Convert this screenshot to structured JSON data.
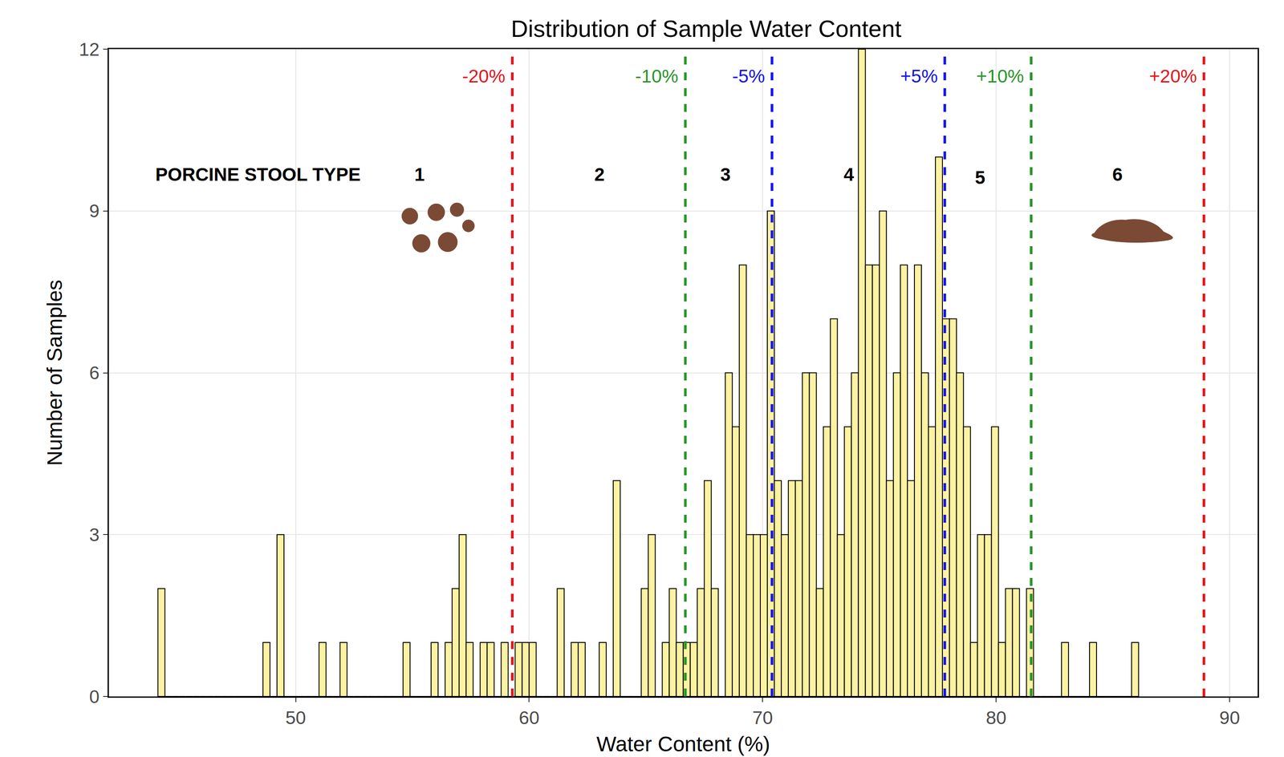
{
  "chart_data": {
    "type": "histogram",
    "title": "Distribution of Sample Water Content",
    "x_label": "Water Content (%)",
    "y_label": "Number of Samples",
    "color": "#fdf2a2",
    "bins": [
      44.1,
      44.4,
      44.7,
      45.0,
      45.3,
      45.6,
      45.9,
      46.2,
      46.5,
      46.8,
      47.1,
      47.4,
      47.7,
      48.0,
      48.3,
      48.6,
      48.9,
      49.2,
      49.5,
      49.8,
      50.1,
      50.4,
      50.7,
      51.0,
      51.3,
      51.6,
      51.9,
      52.2,
      52.5,
      52.8,
      53.1,
      53.4,
      53.7,
      54.0,
      54.3,
      54.6,
      54.9,
      55.2,
      55.5,
      55.8,
      56.1,
      56.4,
      56.7,
      57.0,
      57.3,
      57.6,
      57.9,
      58.2,
      58.5,
      58.8,
      59.1,
      59.4,
      59.7,
      60.0,
      60.3,
      60.6,
      60.9,
      61.2,
      61.5,
      61.8,
      62.1,
      62.4,
      62.7,
      63.0,
      63.3,
      63.6,
      63.9,
      64.2,
      64.5,
      64.8,
      65.1,
      65.4,
      65.7,
      66.0,
      66.3,
      66.6,
      66.9,
      67.2,
      67.5,
      67.8,
      68.1,
      68.4,
      68.7,
      69.0,
      69.3,
      69.6,
      69.9,
      70.2,
      70.5,
      70.8,
      71.1,
      71.4,
      71.7,
      72.0,
      72.3,
      72.6,
      72.9,
      73.2,
      73.5,
      73.8,
      74.1,
      74.4,
      74.7,
      75.0,
      75.3,
      75.6,
      75.9,
      76.2,
      76.5,
      76.8,
      77.1,
      77.4,
      77.7,
      78.0,
      78.3,
      78.6,
      78.9,
      79.2,
      79.5,
      79.8,
      80.1,
      80.4,
      80.7,
      81.0,
      81.3,
      81.6,
      81.9,
      82.2,
      82.5,
      82.8,
      83.1,
      83.4,
      83.7,
      84.0,
      84.3,
      84.6,
      84.9,
      85.2,
      85.5,
      85.8,
      86.1
    ],
    "values": [
      2,
      0,
      0,
      0,
      0,
      0,
      0,
      0,
      0,
      0,
      0,
      0,
      0,
      0,
      0,
      1,
      0,
      3,
      0,
      0,
      0,
      0,
      0,
      1,
      0,
      0,
      1,
      0,
      0,
      0,
      0,
      0,
      0,
      0,
      0,
      1,
      0,
      0,
      0,
      1,
      0,
      1,
      2,
      3,
      1,
      0,
      1,
      1,
      0,
      1,
      0,
      1,
      1,
      1,
      0,
      0,
      0,
      2,
      0,
      1,
      1,
      0,
      0,
      1,
      0,
      4,
      0,
      0,
      0,
      2,
      3,
      0,
      1,
      2,
      1,
      1,
      1,
      2,
      4,
      2,
      0,
      6,
      5,
      8,
      3,
      3,
      3,
      9,
      4,
      3,
      4,
      4,
      6,
      6,
      2,
      5,
      7,
      3,
      5,
      6,
      12,
      8,
      8,
      9,
      4,
      6,
      8,
      4,
      8,
      6,
      5,
      10,
      7,
      7,
      6,
      5,
      1,
      3,
      3,
      5,
      1,
      2,
      2,
      0,
      2,
      0,
      0,
      0,
      0,
      1,
      0,
      0,
      0,
      1,
      0,
      0,
      0,
      0,
      0,
      1
    ],
    "xlim": [
      42.0,
      91.2
    ],
    "ylim": [
      0,
      12
    ],
    "xticks": [
      50,
      60,
      70,
      80,
      90
    ],
    "yticks": [
      0,
      3,
      6,
      9,
      12
    ],
    "grid": true,
    "reference_lines": [
      {
        "x": 59.28,
        "text": "-20%",
        "color": "#e8141b",
        "line_style": "dash"
      },
      {
        "x": 66.69,
        "text": "-10%",
        "color": "#2a962a",
        "line_style": "dash"
      },
      {
        "x": 70.4,
        "text": "-5%",
        "color": "#1515f0",
        "line_style": "dash"
      },
      {
        "x": 77.8,
        "text": "+5%",
        "color": "#1515f0",
        "line_style": "dash"
      },
      {
        "x": 81.5,
        "text": "+10%",
        "color": "#2a962a",
        "line_style": "dash"
      },
      {
        "x": 88.9,
        "text": "+20%",
        "color": "#e8141b",
        "line_style": "dash"
      }
    ],
    "reference_label_y": 11.5,
    "annotations": [
      {
        "text": "PORCINE STOOL TYPE",
        "x": 48.4,
        "y": 9.68
      },
      {
        "text": "1",
        "x": 55.3,
        "y": 9.68
      },
      {
        "text": "2",
        "x": 63.0,
        "y": 9.68
      },
      {
        "text": "3",
        "x": 68.4,
        "y": 9.68
      },
      {
        "text": "4",
        "x": 73.7,
        "y": 9.68
      },
      {
        "text": "5",
        "x": 79.3,
        "y": 9.62
      },
      {
        "text": "6",
        "x": 85.2,
        "y": 9.68
      }
    ]
  }
}
